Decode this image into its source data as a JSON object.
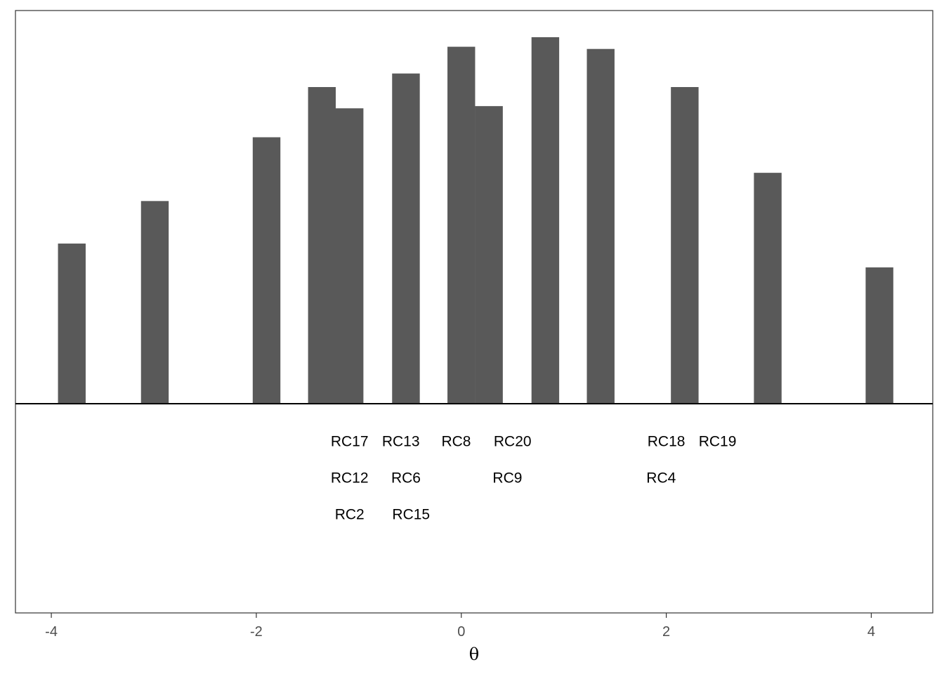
{
  "chart_data": {
    "type": "bar",
    "title": "",
    "xlabel": "θ",
    "ylabel": "",
    "xlim": [
      -4.35,
      4.6
    ],
    "ylim": [
      0,
      1
    ],
    "x_ticks": [
      {
        "value": -4,
        "label": "-4"
      },
      {
        "value": -2,
        "label": "-2"
      },
      {
        "value": 0,
        "label": "0"
      },
      {
        "value": 2,
        "label": "2"
      },
      {
        "value": 4,
        "label": "4"
      }
    ],
    "bar_width": 0.27,
    "bars": [
      {
        "x": -3.8,
        "value": 0.437
      },
      {
        "x": -2.99,
        "value": 0.553
      },
      {
        "x": -1.9,
        "value": 0.727
      },
      {
        "x": -1.36,
        "value": 0.864
      },
      {
        "x": -1.09,
        "value": 0.806
      },
      {
        "x": -0.54,
        "value": 0.901
      },
      {
        "x": 0.0,
        "value": 0.974
      },
      {
        "x": 0.27,
        "value": 0.812
      },
      {
        "x": 0.82,
        "value": 1.0
      },
      {
        "x": 1.36,
        "value": 0.968
      },
      {
        "x": 2.18,
        "value": 0.864
      },
      {
        "x": 2.99,
        "value": 0.63
      },
      {
        "x": 4.08,
        "value": 0.372
      }
    ],
    "item_labels": [
      {
        "x": -1.09,
        "row": 1,
        "label": "RC17"
      },
      {
        "x": -0.59,
        "row": 1,
        "label": "RC13"
      },
      {
        "x": -0.05,
        "row": 1,
        "label": "RC8"
      },
      {
        "x": 0.5,
        "row": 1,
        "label": "RC20"
      },
      {
        "x": 2.0,
        "row": 1,
        "label": "RC18"
      },
      {
        "x": 2.5,
        "row": 1,
        "label": "RC19"
      },
      {
        "x": -1.09,
        "row": 2,
        "label": "RC12"
      },
      {
        "x": -0.54,
        "row": 2,
        "label": "RC6"
      },
      {
        "x": 0.45,
        "row": 2,
        "label": "RC9"
      },
      {
        "x": 1.95,
        "row": 2,
        "label": "RC4"
      },
      {
        "x": -1.09,
        "row": 3,
        "label": "RC2"
      },
      {
        "x": -0.49,
        "row": 3,
        "label": "RC15"
      }
    ],
    "grid": false,
    "colors": {
      "bar": "#595959",
      "axis": "#333333",
      "divider": "#000000"
    }
  }
}
